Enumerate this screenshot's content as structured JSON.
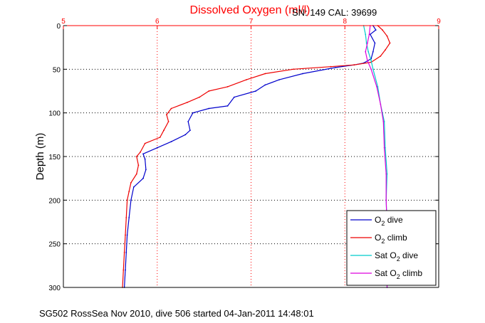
{
  "chart_data": {
    "type": "line",
    "title": "Dissolved Oxygen (ml/l)",
    "header_right": "SN: 149  CAL: 39699",
    "ylabel": "Depth (m)",
    "footer": "SG502 RossSea Nov 2010, dive 506 started 04-Jan-2011 14:48:01",
    "xlim": [
      5,
      9
    ],
    "ylim": [
      0,
      300
    ],
    "y_reversed": true,
    "x_ticks": [
      "5",
      "6",
      "7",
      "8",
      "9"
    ],
    "y_ticks": [
      "0",
      "50",
      "100",
      "150",
      "200",
      "250",
      "300"
    ],
    "grid": true,
    "x_axis_position": "top",
    "legend_position": "bottom-right",
    "colors": {
      "title": "#ff0000",
      "top_axis": "#ff0000",
      "o2_dive": "#0000cc",
      "o2_climb": "#ee0000",
      "sat_dive": "#00cccc",
      "sat_climb": "#dd00dd"
    },
    "series": [
      {
        "key": "o2_dive",
        "name": "O2 dive",
        "legend": {
          "prefix": "O",
          "sub": "2",
          "suffix": " dive"
        },
        "style": "line",
        "points": [
          [
            8.3,
            0
          ],
          [
            8.33,
            5
          ],
          [
            8.27,
            10
          ],
          [
            8.32,
            20
          ],
          [
            8.3,
            30
          ],
          [
            8.28,
            38
          ],
          [
            8.2,
            43
          ],
          [
            8.1,
            45
          ],
          [
            7.9,
            48
          ],
          [
            7.55,
            55
          ],
          [
            7.3,
            62
          ],
          [
            7.15,
            68
          ],
          [
            7.05,
            75
          ],
          [
            6.82,
            82
          ],
          [
            6.75,
            92
          ],
          [
            6.55,
            95
          ],
          [
            6.38,
            100
          ],
          [
            6.33,
            110
          ],
          [
            6.35,
            120
          ],
          [
            6.3,
            125
          ],
          [
            6.15,
            133
          ],
          [
            6.0,
            140
          ],
          [
            5.85,
            147
          ],
          [
            5.87,
            153
          ],
          [
            5.88,
            165
          ],
          [
            5.85,
            175
          ],
          [
            5.75,
            185
          ],
          [
            5.72,
            200
          ],
          [
            5.7,
            220
          ],
          [
            5.68,
            240
          ],
          [
            5.67,
            260
          ],
          [
            5.66,
            280
          ],
          [
            5.65,
            300
          ]
        ]
      },
      {
        "key": "o2_climb",
        "name": "O2 climb",
        "legend": {
          "prefix": "O",
          "sub": "2",
          "suffix": " climb"
        },
        "style": "line",
        "points": [
          [
            8.35,
            0
          ],
          [
            8.4,
            5
          ],
          [
            8.45,
            12
          ],
          [
            8.48,
            20
          ],
          [
            8.43,
            28
          ],
          [
            8.38,
            35
          ],
          [
            8.28,
            42
          ],
          [
            8.1,
            45
          ],
          [
            7.85,
            47
          ],
          [
            7.45,
            50
          ],
          [
            7.15,
            55
          ],
          [
            6.95,
            62
          ],
          [
            6.75,
            70
          ],
          [
            6.55,
            75
          ],
          [
            6.45,
            82
          ],
          [
            6.32,
            88
          ],
          [
            6.15,
            95
          ],
          [
            6.1,
            102
          ],
          [
            6.12,
            110
          ],
          [
            6.07,
            120
          ],
          [
            6.03,
            128
          ],
          [
            5.87,
            135
          ],
          [
            5.82,
            145
          ],
          [
            5.78,
            150
          ],
          [
            5.8,
            160
          ],
          [
            5.78,
            170
          ],
          [
            5.72,
            180
          ],
          [
            5.7,
            190
          ],
          [
            5.68,
            200
          ],
          [
            5.67,
            220
          ],
          [
            5.66,
            240
          ],
          [
            5.65,
            260
          ],
          [
            5.64,
            280
          ],
          [
            5.63,
            300
          ]
        ]
      },
      {
        "key": "sat_dive",
        "name": "Sat O2 dive",
        "legend": {
          "prefix": "Sat O",
          "sub": "2",
          "suffix": " dive"
        },
        "style": "line",
        "points": [
          [
            8.2,
            0
          ],
          [
            8.22,
            10
          ],
          [
            8.23,
            20
          ],
          [
            8.25,
            30
          ],
          [
            8.28,
            40
          ],
          [
            8.3,
            50
          ],
          [
            8.35,
            70
          ],
          [
            8.38,
            90
          ],
          [
            8.42,
            110
          ],
          [
            8.43,
            140
          ],
          [
            8.45,
            170
          ],
          [
            8.44,
            200
          ],
          [
            8.45,
            230
          ],
          [
            8.45,
            260
          ],
          [
            8.45,
            300
          ]
        ]
      },
      {
        "key": "sat_climb",
        "name": "Sat O2 climb",
        "legend": {
          "prefix": "Sat O",
          "sub": "2",
          "suffix": " climb"
        },
        "style": "line",
        "points": [
          [
            8.27,
            0
          ],
          [
            8.26,
            10
          ],
          [
            8.24,
            20
          ],
          [
            8.22,
            30
          ],
          [
            8.24,
            40
          ],
          [
            8.28,
            50
          ],
          [
            8.34,
            70
          ],
          [
            8.38,
            90
          ],
          [
            8.41,
            110
          ],
          [
            8.42,
            140
          ],
          [
            8.44,
            170
          ],
          [
            8.44,
            200
          ],
          [
            8.45,
            230
          ],
          [
            8.45,
            260
          ],
          [
            8.45,
            300
          ]
        ]
      }
    ]
  }
}
